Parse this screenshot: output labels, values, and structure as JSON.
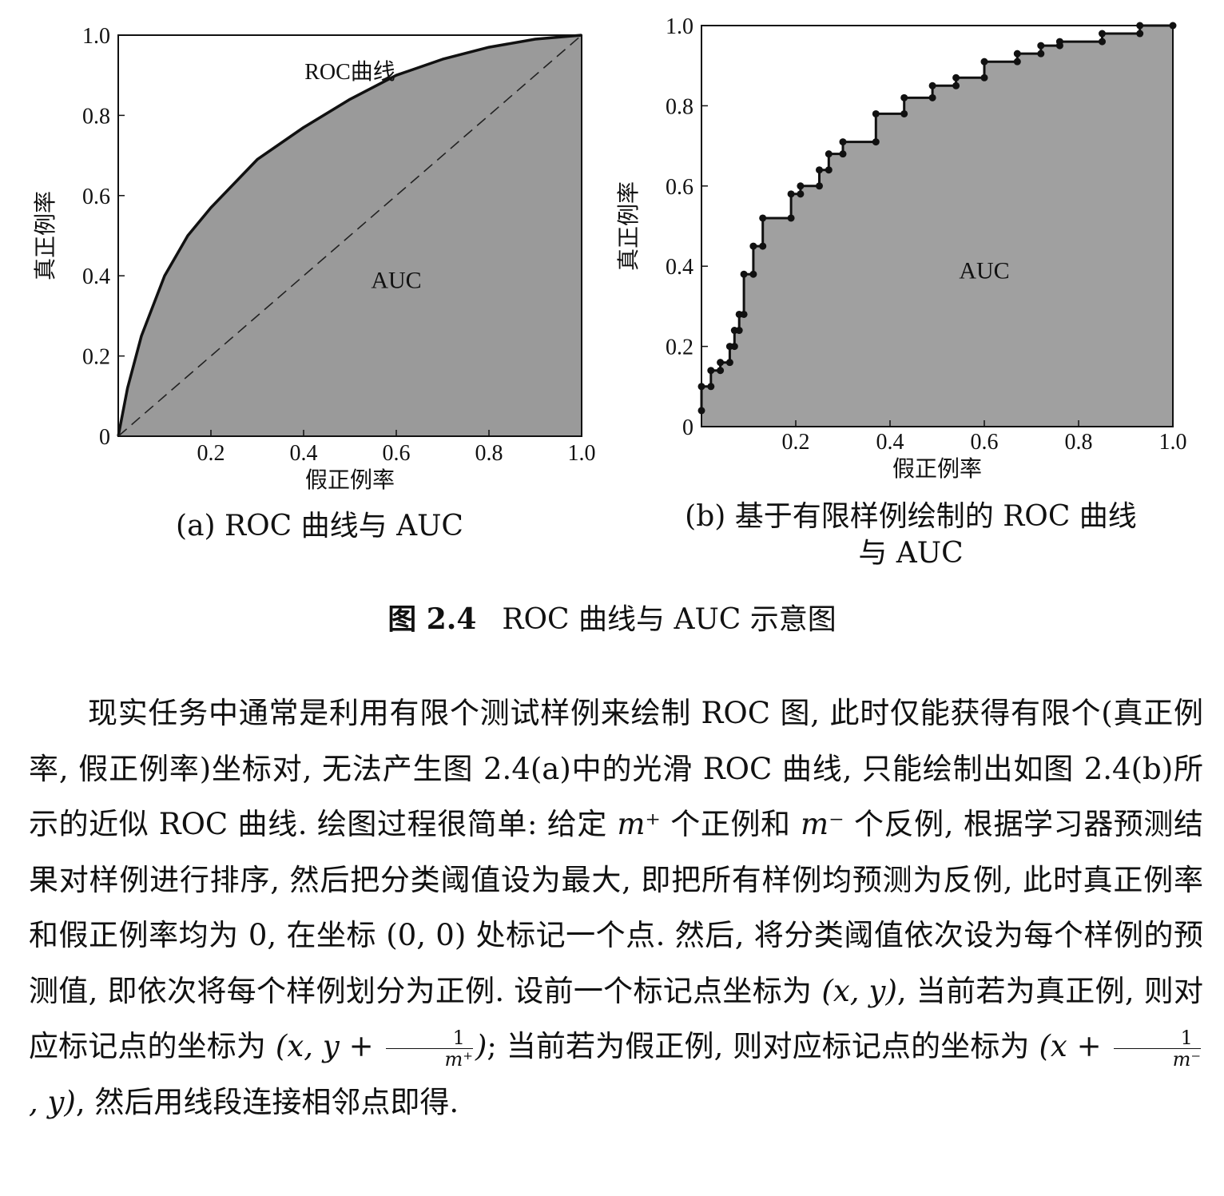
{
  "chart_data": [
    {
      "type": "area",
      "panel": "(a)",
      "xlabel": "假正例率",
      "ylabel": "真正例率",
      "xlim": [
        0,
        1
      ],
      "ylim": [
        0,
        1
      ],
      "x_ticks": [
        "0.2",
        "0.4",
        "0.6",
        "0.8",
        "1.0"
      ],
      "y_ticks": [
        "0",
        "0.2",
        "0.4",
        "0.6",
        "0.8",
        "1.0"
      ],
      "curve_label": "ROC曲线",
      "area_label": "AUC",
      "series": [
        {
          "name": "ROC曲线",
          "x": [
            0,
            0.02,
            0.05,
            0.1,
            0.15,
            0.2,
            0.3,
            0.4,
            0.5,
            0.6,
            0.7,
            0.8,
            0.9,
            1.0
          ],
          "y": [
            0,
            0.12,
            0.25,
            0.4,
            0.5,
            0.57,
            0.69,
            0.77,
            0.84,
            0.9,
            0.94,
            0.97,
            0.99,
            1.0
          ]
        },
        {
          "name": "",
          "style": "dashed",
          "x": [
            0,
            1
          ],
          "y": [
            0,
            1
          ]
        }
      ],
      "fill_color": "#9a9a9a"
    },
    {
      "type": "area",
      "panel": "(b)",
      "xlabel": "假正例率",
      "ylabel": "真正例率",
      "xlim": [
        0,
        1
      ],
      "ylim": [
        0,
        1
      ],
      "x_ticks": [
        "0.2",
        "0.4",
        "0.6",
        "0.8",
        "1.0"
      ],
      "y_ticks": [
        "0",
        "0.2",
        "0.4",
        "0.6",
        "0.8",
        "1.0"
      ],
      "area_label": "AUC",
      "series": [
        {
          "name": "",
          "step_points": [
            [
              0,
              0.04
            ],
            [
              0,
              0.1
            ],
            [
              0.02,
              0.1
            ],
            [
              0.02,
              0.14
            ],
            [
              0.04,
              0.14
            ],
            [
              0.04,
              0.16
            ],
            [
              0.06,
              0.16
            ],
            [
              0.06,
              0.2
            ],
            [
              0.07,
              0.2
            ],
            [
              0.07,
              0.24
            ],
            [
              0.08,
              0.24
            ],
            [
              0.08,
              0.28
            ],
            [
              0.09,
              0.28
            ],
            [
              0.09,
              0.38
            ],
            [
              0.11,
              0.38
            ],
            [
              0.11,
              0.45
            ],
            [
              0.13,
              0.45
            ],
            [
              0.13,
              0.52
            ],
            [
              0.19,
              0.52
            ],
            [
              0.19,
              0.58
            ],
            [
              0.21,
              0.58
            ],
            [
              0.21,
              0.6
            ],
            [
              0.25,
              0.6
            ],
            [
              0.25,
              0.64
            ],
            [
              0.27,
              0.64
            ],
            [
              0.27,
              0.68
            ],
            [
              0.3,
              0.68
            ],
            [
              0.3,
              0.71
            ],
            [
              0.37,
              0.71
            ],
            [
              0.37,
              0.78
            ],
            [
              0.43,
              0.78
            ],
            [
              0.43,
              0.82
            ],
            [
              0.49,
              0.82
            ],
            [
              0.49,
              0.85
            ],
            [
              0.54,
              0.85
            ],
            [
              0.54,
              0.87
            ],
            [
              0.6,
              0.87
            ],
            [
              0.6,
              0.91
            ],
            [
              0.67,
              0.91
            ],
            [
              0.67,
              0.93
            ],
            [
              0.72,
              0.93
            ],
            [
              0.72,
              0.95
            ],
            [
              0.76,
              0.95
            ],
            [
              0.76,
              0.96
            ],
            [
              0.85,
              0.96
            ],
            [
              0.85,
              0.98
            ],
            [
              0.93,
              0.98
            ],
            [
              0.93,
              1.0
            ],
            [
              1.0,
              1.0
            ]
          ]
        }
      ],
      "fill_color": "#a0a0a0"
    }
  ],
  "captions": {
    "a": "(a) ROC 曲线与 AUC",
    "b_line1": "(b) 基于有限样例绘制的 ROC 曲线",
    "b_line2": "与 AUC"
  },
  "figure": {
    "number": "图 2.4",
    "title": "ROC 曲线与 AUC 示意图"
  },
  "paragraph": {
    "s1": "现实任务中通常是利用有限个测试样例来绘制 ROC 图, 此时仅能获得有限个(真正例率, 假正例率)坐标对, 无法产生图 2.4(a)中的光滑 ROC 曲线, 只能绘制出如图 2.4(b)所示的近似 ROC 曲线. 绘图过程很简单: 给定 ",
    "m_plus": "m⁺",
    "s2": " 个正例和 ",
    "m_minus": "m⁻",
    "s3": " 个反例, 根据学习器预测结果对样例进行排序, 然后把分类阈值设为最大, 即把所有样例均预测为反例, 此时真正例率和假正例率均为 0, 在坐标 (0, 0) 处标记一个点. 然后, 将分类阈值依次设为每个样例的预测值, 即依次将每个样例划分为正例. 设前一个标记点坐标为 ",
    "xy": "(x, y)",
    "s4": ", 当前若为真正例, 则对应标记点的坐标为 ",
    "coord1_pre": "(x, y + ",
    "frac_num": "1",
    "frac_den_plus": "m⁺",
    "coord1_post": ")",
    "s5": "; 当前若为假正例, 则对应标记点的坐标为 ",
    "coord2_pre": "(x + ",
    "frac_den_minus": "m⁻",
    "coord2_post": ", y)",
    "s6": ", 然后用线段连接相邻点即得."
  }
}
